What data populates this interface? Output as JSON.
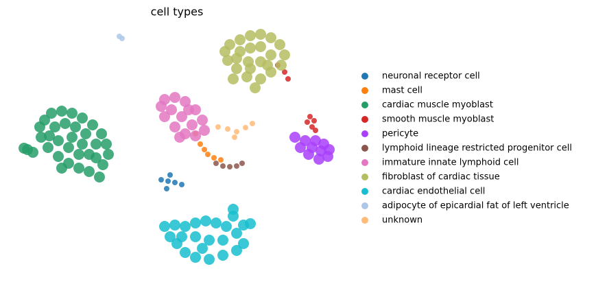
{
  "chart_data": {
    "type": "scatter",
    "title": "cell types",
    "xlim": [
      2,
      50
    ],
    "ylim": [
      3,
      39
    ],
    "axes_visible": false,
    "legend": "right",
    "series": [
      {
        "name": "neuronal receptor cell",
        "color": "#1f77b4",
        "x": [
          23.5,
          24.5,
          25.5,
          26.5,
          24.8,
          24.3
        ],
        "y": [
          14.8,
          14.6,
          14.4,
          14.1,
          15.5,
          13.5
        ]
      },
      {
        "name": "mast cell",
        "color": "#ff7f0e",
        "x": [
          29.2,
          29.8,
          30.3,
          31.2,
          32.2,
          28.5
        ],
        "y": [
          20,
          19.2,
          18.5,
          18,
          17.7,
          21.5
        ]
      },
      {
        "name": "cardiac muscle myoblast",
        "color": "#279e68",
        "x": [
          6.5,
          7.5,
          9,
          10.5,
          12,
          13.5,
          14.8,
          15.5,
          15.8,
          15,
          14.5,
          13,
          11.5,
          10,
          8.5,
          7,
          6,
          5.8,
          8,
          9.5,
          11,
          12.5,
          14,
          13,
          11.5,
          10,
          8.5,
          7.2,
          12,
          10.5,
          14,
          9,
          4,
          4.8,
          3.5
        ],
        "y": [
          23.5,
          24.5,
          24.8,
          24.5,
          23.8,
          22.8,
          21.5,
          20,
          18.5,
          17,
          15.2,
          16,
          16.5,
          17.2,
          18.2,
          19.5,
          21,
          22.5,
          22.5,
          23,
          22.5,
          21.5,
          20,
          18.5,
          18.5,
          19.5,
          20.5,
          21.2,
          20,
          21,
          18,
          16.5,
          19.2,
          18.8,
          19.4
        ]
      },
      {
        "name": "smooth muscle myoblast",
        "color": "#d62728",
        "x": [
          45.2,
          45.8,
          45.5,
          46,
          44.8,
          41.5,
          40.5,
          42
        ],
        "y": [
          24,
          23.4,
          22.5,
          22,
          23.2,
          30.5,
          31.5,
          29.5
        ]
      },
      {
        "name": "pericyte",
        "color": "#aa40fc",
        "x": [
          43,
          44.5,
          46,
          47.2,
          48,
          47.8,
          46.5,
          45,
          43.8,
          45.5,
          46.8
        ],
        "y": [
          21,
          20.5,
          20.5,
          20,
          19.2,
          18.2,
          17.8,
          18.5,
          19.5,
          19.5,
          19
        ]
      },
      {
        "name": "lymphoid lineage restricted progenitor cell",
        "color": "#8c564b",
        "x": [
          31.5,
          32.5,
          33.5,
          34.5,
          35.3
        ],
        "y": [
          17.2,
          16.8,
          16.7,
          16.8,
          17.2
        ]
      },
      {
        "name": "immature innate lymphoid cell",
        "color": "#e377c2",
        "x": [
          24,
          25.5,
          27,
          28.5,
          29.5,
          29.8,
          28.5,
          27,
          25.5,
          24,
          23.5,
          25,
          26.5,
          28,
          26.2,
          27.5
        ],
        "y": [
          26.5,
          26.8,
          26.2,
          25,
          23.5,
          22,
          21.2,
          21.5,
          22.5,
          24,
          25.5,
          25,
          24,
          22.8,
          21,
          25
        ]
      },
      {
        "name": "fibroblast of cardiac tissue",
        "color": "#b5bd61",
        "x": [
          33.5,
          35,
          36.5,
          38,
          39.5,
          40.8,
          41.5,
          41,
          39.5,
          38,
          37.2,
          36,
          34.5,
          33.2,
          32.8,
          35,
          36.5,
          38,
          39.5,
          38,
          36.2,
          34.5,
          36.5,
          34,
          39
        ],
        "y": [
          34.5,
          35.2,
          35.8,
          36,
          35.5,
          34.5,
          33,
          31.5,
          30.5,
          29.5,
          28.2,
          29.8,
          31,
          32.2,
          33.5,
          33.5,
          34,
          34.2,
          33,
          32,
          32,
          32.5,
          31,
          29.5,
          31.5
        ]
      },
      {
        "name": "cardiac endothelial cell",
        "color": "#17becf",
        "x": [
          24,
          25.5,
          27,
          28.5,
          30,
          31.5,
          33,
          34.5,
          35.5,
          34.5,
          32.5,
          30.5,
          28.5,
          27,
          25.8,
          24.8,
          26.5,
          28.5,
          30.5,
          32.5,
          29.5,
          34,
          35.5,
          36.5,
          34
        ],
        "y": [
          8,
          8.2,
          8,
          8.5,
          8.8,
          8.5,
          8,
          7,
          5.5,
          4.5,
          3.8,
          3.2,
          3.5,
          4.2,
          5.5,
          6.5,
          6.5,
          6.5,
          6,
          6,
          4.8,
          9.5,
          8.2,
          8.4,
          10.5
        ]
      },
      {
        "name": "adipocyte of epicardial fat of left ventricle",
        "color": "#aec7e8",
        "x": [
          17.4,
          17.8
        ],
        "y": [
          35.7,
          35.4
        ]
      },
      {
        "name": "unknown",
        "color": "#ffbb78",
        "x": [
          31.8,
          33.2,
          34.5,
          35.8,
          36.8,
          34.2
        ],
        "y": [
          22.5,
          22.2,
          21.8,
          22.4,
          23,
          21
        ]
      }
    ]
  }
}
